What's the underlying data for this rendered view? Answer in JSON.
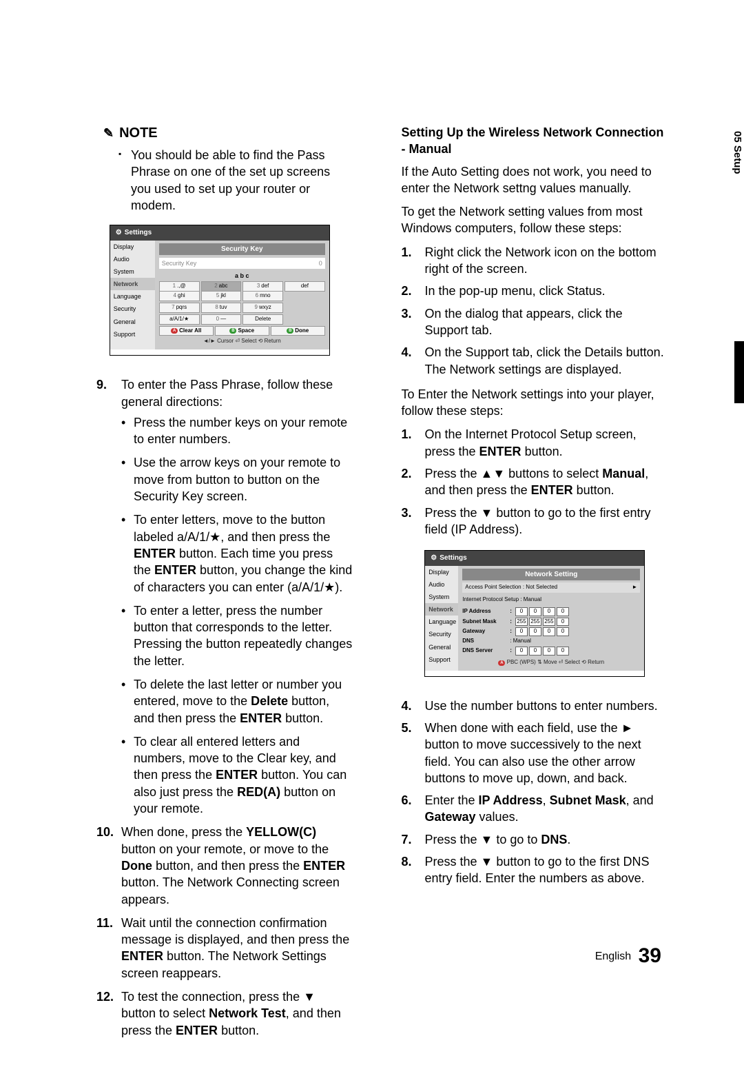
{
  "sideTab": "05  Setup",
  "note": {
    "label": "NOTE",
    "body": "You should be able to find the Pass Phrase on one of the set up screens you used to set up your router or modem."
  },
  "screenshot1": {
    "settings": "Settings",
    "side": [
      "Display",
      "Audio",
      "System",
      "Network",
      "Language",
      "Security",
      "General",
      "Support"
    ],
    "title": "Security Key",
    "inputHint": "Security Key",
    "inputCount": "0",
    "abc": "a   b   c",
    "keys": [
      [
        "1",
        ".,@"
      ],
      [
        "2",
        "abc"
      ],
      [
        "3",
        "def"
      ],
      [
        "4",
        "ghi"
      ],
      [
        "5",
        "jkl"
      ],
      [
        "6",
        "mno"
      ],
      [
        "7",
        "pqrs"
      ],
      [
        "8",
        "tuv"
      ],
      [
        "9",
        "wxyz"
      ],
      [
        "",
        "a/A/1/★"
      ],
      [
        "0",
        "—"
      ],
      [
        "",
        "Delete"
      ]
    ],
    "clearAll": "Clear All",
    "space": "Space",
    "done": "Done",
    "footer": "◄/► Cursor    ⏎ Select    ⟲ Return"
  },
  "leftList": {
    "i9": {
      "num": "9.",
      "text": "To enter the Pass Phrase, follow these general directions:",
      "bullets": [
        "Press the number keys on your remote to enter numbers.",
        "Use the arrow keys on your remote to move from button to button on the Security Key screen.",
        "To enter letters, move to the button labeled a/A/1/★, and then press the <b>ENTER</b> button. Each time you press the <b>ENTER</b> button, you change the kind of characters you can enter (a/A/1/★).",
        "To enter a letter, press the number button that corresponds to the letter. Pressing the button repeatedly changes the letter.",
        "To delete the last letter or number you entered, move to the <b>Delete</b> button, and then press the <b>ENTER</b> button.",
        "To clear all entered letters and numbers, move to the Clear key, and then press the <b>ENTER</b> button. You can also just press the <b>RED(A)</b> button on your remote."
      ]
    },
    "i10": {
      "num": "10.",
      "text": "When done, press the <b>YELLOW(C)</b> button on your remote, or move to the <b>Done</b> button, and then press the <b>ENTER</b> button. The Network Connecting screen appears."
    },
    "i11": {
      "num": "11.",
      "text": "Wait until the connection confirmation message is displayed, and then press the <b>ENTER</b> button. The Network Settings screen reappears."
    },
    "i12": {
      "num": "12.",
      "text": "To test the connection, press the ▼ button to select <b>Network Test</b>, and then press the <b>ENTER</b> button."
    }
  },
  "right": {
    "heading": "Setting Up the Wireless Network Connection - Manual",
    "para1": "If the Auto Setting does not work, you need to enter the Network settng values manually.",
    "para2": "To get the Network setting values from most Windows computers, follow these steps:",
    "listA": {
      "i1": {
        "num": "1.",
        "text": "Right click the Network icon on the bottom right of the screen."
      },
      "i2": {
        "num": "2.",
        "text": "In the pop-up menu, click Status."
      },
      "i3": {
        "num": "3.",
        "text": "On the dialog that appears, click the Support tab."
      },
      "i4": {
        "num": "4.",
        "text": "On the Support tab, click the Details button. The Network settings are displayed."
      }
    },
    "para3": "To Enter the Network settings into your player, follow these steps:",
    "listB": {
      "i1": {
        "num": "1.",
        "text": "On the Internet Protocol Setup screen, press the <b>ENTER</b> button."
      },
      "i2": {
        "num": "2.",
        "text": "Press the ▲▼ buttons to select <b>Manual</b>, and then press the <b>ENTER</b> button."
      },
      "i3": {
        "num": "3.",
        "text": "Press the ▼ button to go to the first entry field (IP Address)."
      }
    },
    "listC": {
      "i4": {
        "num": "4.",
        "text": "Use the number buttons to enter numbers."
      },
      "i5": {
        "num": "5.",
        "text": "When done with each field, use the ► button to move successively to the next field. You can also use the other arrow buttons to move up, down, and back."
      },
      "i6": {
        "num": "6.",
        "text": "Enter the <b>IP Address</b>, <b>Subnet Mask</b>, and <b>Gateway</b> values."
      },
      "i7": {
        "num": "7.",
        "text": "Press the ▼ to go to <b>DNS</b>."
      },
      "i8": {
        "num": "8.",
        "text": "Press the ▼ button to go to the first DNS entry field. Enter the numbers as above."
      }
    }
  },
  "screenshot2": {
    "settings": "Settings",
    "side": [
      "Display",
      "Audio",
      "System",
      "Network",
      "Language",
      "Security",
      "General",
      "Support"
    ],
    "title": "Network Setting",
    "aps": "Access Point Selection  : Not Selected",
    "ips": "Internet Protocol Setup : Manual",
    "rows": {
      "ip": {
        "label": "IP Address",
        "vals": [
          "0",
          "0",
          "0",
          "0"
        ]
      },
      "sm": {
        "label": "Subnet Mask",
        "vals": [
          "255",
          "255",
          "255",
          "0"
        ]
      },
      "gw": {
        "label": "Gateway",
        "vals": [
          "0",
          "0",
          "0",
          "0"
        ]
      },
      "dns": {
        "label": "DNS",
        "val": ": Manual"
      },
      "dsrv": {
        "label": "DNS Server",
        "vals": [
          "0",
          "0",
          "0",
          "0"
        ]
      }
    },
    "footer": "PBC (WPS)   ⇅ Move   ⏎ Select   ⟲ Return"
  },
  "footer": {
    "lang": "English",
    "page": "39"
  }
}
